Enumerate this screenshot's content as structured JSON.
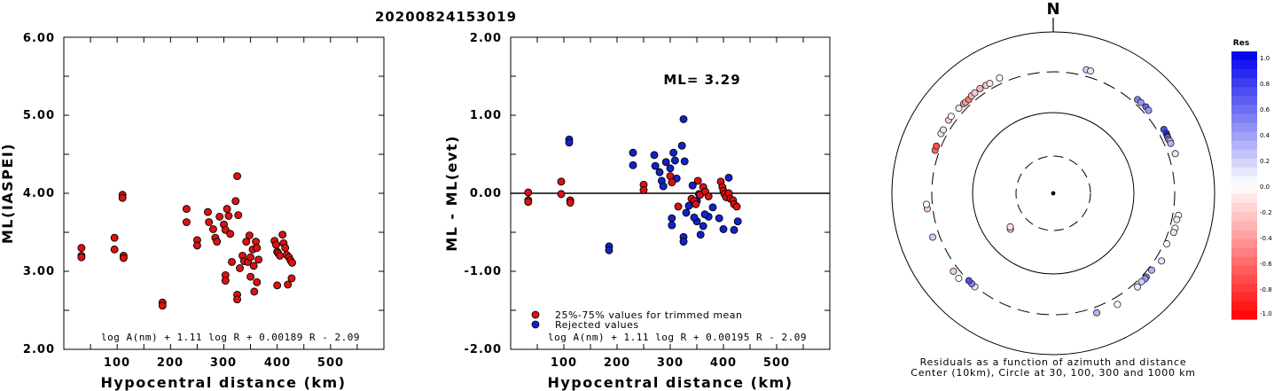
{
  "title": "20200824153019",
  "colors": {
    "used": "#dd1111",
    "rejected": "#1122cc",
    "outline": "#000000"
  },
  "chart_data": [
    {
      "type": "scatter",
      "xlabel": "Hypocentral distance (km)",
      "ylabel": "ML(IASPEI)",
      "xlim": [
        0,
        600
      ],
      "ylim": [
        2.0,
        6.0
      ],
      "xticks": [
        "100",
        "200",
        "300",
        "400",
        "500"
      ],
      "yticks": [
        "2.00",
        "3.00",
        "4.00",
        "5.00",
        "6.00"
      ],
      "formula": "log A(nm) + 1.11 log R + 0.00189 R - 2.09",
      "points": [
        [
          33,
          3.3
        ],
        [
          33,
          3.2
        ],
        [
          33,
          3.18
        ],
        [
          95,
          3.43
        ],
        [
          95,
          3.28
        ],
        [
          110,
          3.98
        ],
        [
          110,
          3.94
        ],
        [
          112,
          3.2
        ],
        [
          112,
          3.17
        ],
        [
          185,
          2.6
        ],
        [
          185,
          2.56
        ],
        [
          230,
          3.8
        ],
        [
          230,
          3.63
        ],
        [
          250,
          3.4
        ],
        [
          250,
          3.33
        ],
        [
          270,
          3.76
        ],
        [
          272,
          3.63
        ],
        [
          280,
          3.54
        ],
        [
          284,
          3.43
        ],
        [
          287,
          3.38
        ],
        [
          292,
          3.7
        ],
        [
          300,
          3.6
        ],
        [
          303,
          3.53
        ],
        [
          306,
          3.8
        ],
        [
          309,
          3.71
        ],
        [
          312,
          3.48
        ],
        [
          315,
          3.12
        ],
        [
          322,
          3.9
        ],
        [
          325,
          4.22
        ],
        [
          327,
          3.72
        ],
        [
          330,
          3.04
        ],
        [
          335,
          3.2
        ],
        [
          338,
          3.13
        ],
        [
          342,
          3.38
        ],
        [
          345,
          3.12
        ],
        [
          348,
          3.46
        ],
        [
          350,
          3.18
        ],
        [
          354,
          3.28
        ],
        [
          356,
          3.07
        ],
        [
          360,
          3.38
        ],
        [
          362,
          3.3
        ],
        [
          365,
          3.15
        ],
        [
          303,
          2.95
        ],
        [
          303,
          2.88
        ],
        [
          325,
          2.7
        ],
        [
          325,
          2.64
        ],
        [
          350,
          2.93
        ],
        [
          357,
          2.74
        ],
        [
          362,
          2.86
        ],
        [
          395,
          3.39
        ],
        [
          398,
          3.34
        ],
        [
          400,
          3.25
        ],
        [
          402,
          3.23
        ],
        [
          405,
          3.2
        ],
        [
          410,
          3.47
        ],
        [
          412,
          3.36
        ],
        [
          415,
          3.3
        ],
        [
          418,
          3.21
        ],
        [
          422,
          3.18
        ],
        [
          425,
          3.14
        ],
        [
          428,
          3.11
        ],
        [
          400,
          2.82
        ],
        [
          420,
          2.83
        ],
        [
          427,
          2.91
        ]
      ]
    },
    {
      "type": "scatter",
      "xlabel": "Hypocentral distance (km)",
      "ylabel": "ML - ML(evt)",
      "xlim": [
        0,
        600
      ],
      "ylim": [
        -2.0,
        2.0
      ],
      "xticks": [
        "100",
        "200",
        "300",
        "400",
        "500"
      ],
      "yticks": [
        "-2.00",
        "-1.00",
        "0.00",
        "1.00",
        "2.00"
      ],
      "annotation": "ML= 3.29",
      "legend": [
        "25%-75% values for trimmed mean",
        "Rejected values"
      ],
      "formula": "log A(nm) + 1.11 log R + 0.00195 R - 2.09",
      "used": [
        [
          33,
          0.01
        ],
        [
          33,
          -0.09
        ],
        [
          33,
          -0.11
        ],
        [
          95,
          0.15
        ],
        [
          95,
          -0.01
        ],
        [
          112,
          -0.09
        ],
        [
          112,
          -0.12
        ],
        [
          250,
          0.11
        ],
        [
          250,
          0.04
        ],
        [
          300,
          0.22
        ],
        [
          303,
          0.14
        ],
        [
          315,
          -0.17
        ],
        [
          340,
          -0.07
        ],
        [
          345,
          -0.1
        ],
        [
          348,
          -0.14
        ],
        [
          352,
          0.16
        ],
        [
          356,
          -0.02
        ],
        [
          362,
          0.08
        ],
        [
          366,
          0.02
        ],
        [
          372,
          -0.04
        ],
        [
          395,
          0.15
        ],
        [
          398,
          0.08
        ],
        [
          400,
          0.03
        ],
        [
          402,
          -0.01
        ],
        [
          405,
          -0.05
        ],
        [
          410,
          0.0
        ],
        [
          413,
          -0.07
        ],
        [
          418,
          -0.09
        ],
        [
          420,
          -0.14
        ],
        [
          425,
          -0.17
        ]
      ],
      "rejected": [
        [
          110,
          0.69
        ],
        [
          110,
          0.65
        ],
        [
          185,
          -0.68
        ],
        [
          185,
          -0.73
        ],
        [
          230,
          0.52
        ],
        [
          230,
          0.36
        ],
        [
          270,
          0.49
        ],
        [
          272,
          0.35
        ],
        [
          280,
          0.27
        ],
        [
          284,
          0.16
        ],
        [
          287,
          0.09
        ],
        [
          292,
          0.4
        ],
        [
          300,
          0.32
        ],
        [
          306,
          0.52
        ],
        [
          309,
          0.42
        ],
        [
          312,
          0.19
        ],
        [
          322,
          0.61
        ],
        [
          325,
          0.95
        ],
        [
          327,
          0.41
        ],
        [
          330,
          -0.25
        ],
        [
          335,
          -0.16
        ],
        [
          342,
          0.1
        ],
        [
          350,
          -0.1
        ],
        [
          354,
          -0.01
        ],
        [
          303,
          -0.32
        ],
        [
          303,
          -0.41
        ],
        [
          325,
          -0.56
        ],
        [
          325,
          -0.62
        ],
        [
          350,
          -0.36
        ],
        [
          357,
          -0.53
        ],
        [
          362,
          -0.42
        ],
        [
          372,
          -0.3
        ],
        [
          380,
          -0.18
        ],
        [
          392,
          -0.32
        ],
        [
          400,
          -0.46
        ],
        [
          410,
          0.2
        ],
        [
          420,
          -0.47
        ],
        [
          427,
          -0.36
        ],
        [
          365,
          -0.27
        ],
        [
          345,
          -0.31
        ]
      ]
    },
    {
      "type": "polar-scatter",
      "north": "N",
      "caption_line1": "Residuals as a function of azimuth and distance",
      "caption_line2": "Center (10km), Circle at 30, 100, 300 and 1000 km",
      "colorbar_title": "Res",
      "colorbar_ticks": [
        "1.0",
        "0.8",
        "0.6",
        "0.4",
        "0.2",
        "0.0",
        "-0.2",
        "-0.4",
        "-0.6",
        "-0.8",
        "-1.0"
      ],
      "points": [
        [
          15,
          412,
          0.2
        ],
        [
          17,
          412,
          0.1
        ],
        [
          42,
          380,
          0.5
        ],
        [
          44,
          382,
          0.4
        ],
        [
          47,
          392,
          0.6
        ],
        [
          49,
          385,
          0.4
        ],
        [
          60,
          410,
          0.7
        ],
        [
          62,
          415,
          0.8
        ],
        [
          63,
          410,
          0.9
        ],
        [
          64,
          405,
          0.6
        ],
        [
          65,
          402,
          0.5
        ],
        [
          66,
          413,
          0.2
        ],
        [
          67,
          408,
          0.3
        ],
        [
          72,
          420,
          0.1
        ],
        [
          100,
          400,
          0.0
        ],
        [
          102,
          385,
          -0.1
        ],
        [
          106,
          392,
          0.0
        ],
        [
          108,
          390,
          0.1
        ],
        [
          114,
          350,
          0.0
        ],
        [
          122,
          410,
          0.1
        ],
        [
          128,
          360,
          0.3
        ],
        [
          132,
          365,
          0.5
        ],
        [
          133,
          370,
          0.4
        ],
        [
          135,
          362,
          0.2
        ],
        [
          138,
          380,
          0.1
        ],
        [
          150,
          420,
          0.0
        ],
        [
          160,
          400,
          0.3
        ],
        [
          230,
          60,
          -0.2
        ],
        [
          232,
          58,
          -0.1
        ],
        [
          220,
          310,
          -0.1
        ],
        [
          222,
          305,
          0.5
        ],
        [
          224,
          300,
          0.7
        ],
        [
          228,
          400,
          0.0
        ],
        [
          232,
          392,
          -0.2
        ],
        [
          250,
          420,
          0.2
        ],
        [
          263,
          395,
          -0.2
        ],
        [
          265,
          402,
          0.0
        ],
        [
          290,
          375,
          -0.6
        ],
        [
          292,
          380,
          -0.7
        ],
        [
          298,
          400,
          -0.1
        ],
        [
          300,
          395,
          0.1
        ],
        [
          305,
          408,
          -0.2
        ],
        [
          307,
          412,
          0.0
        ],
        [
          312,
          398,
          -0.1
        ],
        [
          315,
          392,
          -0.3
        ],
        [
          316,
          385,
          -0.4
        ],
        [
          318,
          382,
          -0.5
        ],
        [
          320,
          400,
          -0.3
        ],
        [
          322,
          405,
          -0.2
        ],
        [
          325,
          410,
          -0.3
        ],
        [
          328,
          400,
          -0.2
        ],
        [
          330,
          395,
          -0.1
        ],
        [
          335,
          400,
          0.0
        ]
      ]
    }
  ]
}
